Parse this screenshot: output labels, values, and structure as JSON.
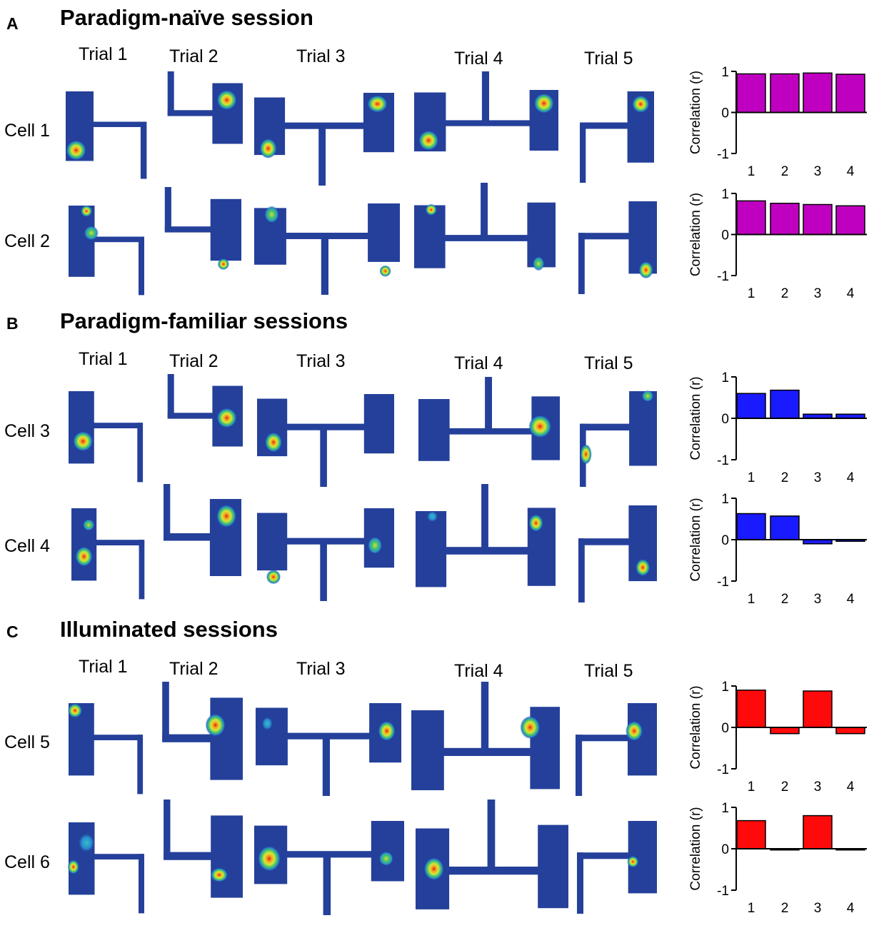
{
  "colors": {
    "purple": "#c000c0",
    "blue": "#1a1aff",
    "red": "#ff0a0a",
    "mapBase": "#24409a"
  },
  "panels": [
    {
      "letter": "A",
      "title": "Paradigm-naïve session",
      "trials": [
        "Trial 1",
        "Trial 2",
        "Trial 3",
        "Trial 4",
        "Trial 5"
      ],
      "cells": [
        "Cell 1",
        "Cell 2"
      ]
    },
    {
      "letter": "B",
      "title": "Paradigm-familiar sessions",
      "trials": [
        "Trial 1",
        "Trial 2",
        "Trial 3",
        "Trial 4",
        "Trial 5"
      ],
      "cells": [
        "Cell 3",
        "Cell 4"
      ]
    },
    {
      "letter": "C",
      "title": "Illuminated sessions",
      "trials": [
        "Trial 1",
        "Trial 2",
        "Trial 3",
        "Trial 4",
        "Trial 5"
      ],
      "cells": [
        "Cell 5",
        "Cell 6"
      ]
    }
  ],
  "chart_data": [
    {
      "type": "bar",
      "cell": "Cell 1",
      "color": "purple",
      "categories": [
        "1",
        "2",
        "3",
        "4"
      ],
      "values": [
        0.94,
        0.94,
        0.96,
        0.93
      ],
      "ylabel": "Correlation (r)",
      "ylim": [
        -1,
        1
      ],
      "yticks": [
        "1",
        "0",
        "-1"
      ]
    },
    {
      "type": "bar",
      "cell": "Cell 2",
      "color": "purple",
      "categories": [
        "1",
        "2",
        "3",
        "4"
      ],
      "values": [
        0.82,
        0.76,
        0.73,
        0.7
      ],
      "ylabel": "Correlation (r)",
      "ylim": [
        -1,
        1
      ],
      "yticks": [
        "1",
        "0",
        "-1"
      ]
    },
    {
      "type": "bar",
      "cell": "Cell 3",
      "color": "blue",
      "categories": [
        "1",
        "2",
        "3",
        "4"
      ],
      "values": [
        0.6,
        0.68,
        0.1,
        0.1
      ],
      "ylabel": "Correlation (r)",
      "ylim": [
        -1,
        1
      ],
      "yticks": [
        "1",
        "0",
        "-1"
      ]
    },
    {
      "type": "bar",
      "cell": "Cell 4",
      "color": "blue",
      "categories": [
        "1",
        "2",
        "3",
        "4"
      ],
      "values": [
        0.63,
        0.57,
        -0.1,
        -0.04
      ],
      "ylabel": "Correlation (r)",
      "ylim": [
        -1,
        1
      ],
      "yticks": [
        "1",
        "0",
        "-1"
      ]
    },
    {
      "type": "bar",
      "cell": "Cell 5",
      "color": "red",
      "categories": [
        "1",
        "2",
        "3",
        "4"
      ],
      "values": [
        0.9,
        -0.15,
        0.88,
        -0.15
      ],
      "ylabel": "Correlation (r)",
      "ylim": [
        -1,
        1
      ],
      "yticks": [
        "1",
        "0",
        "-1"
      ]
    },
    {
      "type": "bar",
      "cell": "Cell 6",
      "color": "red",
      "categories": [
        "1",
        "2",
        "3",
        "4"
      ],
      "values": [
        0.68,
        -0.03,
        0.8,
        -0.03
      ],
      "ylabel": "Correlation (r)",
      "ylim": [
        -1,
        1
      ],
      "yticks": [
        "1",
        "0",
        "-1"
      ]
    }
  ]
}
